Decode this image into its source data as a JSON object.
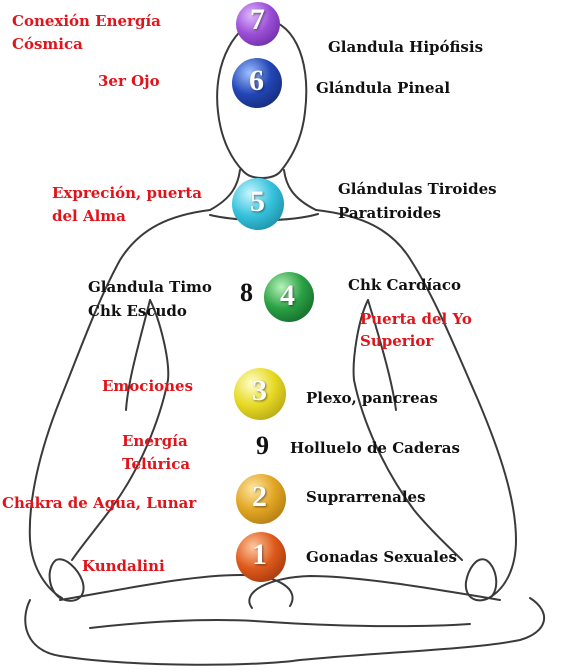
{
  "chakras": [
    {
      "number": "7",
      "color": "#8b3cc4",
      "label": "Glandula Hipófisis",
      "side_label": "Conexión Energía Cósmica"
    },
    {
      "number": "6",
      "color": "#1c3d9c",
      "label": "Glándula Pineal",
      "side_label": "3er Ojo"
    },
    {
      "number": "5",
      "color": "#2bb4cf",
      "label": "Glándulas Tiroides Paratiroides",
      "side_label": "Expreción, puerta del Alma"
    },
    {
      "number": "4",
      "color": "#1f8a3a",
      "label": "Chk Cardíaco",
      "side_label": "Puerta del Yo Superior"
    },
    {
      "number": "3",
      "color": "#e3d21a",
      "label": "Plexo, pancreas",
      "side_label": "Emociones"
    },
    {
      "number": "2",
      "color": "#e0a21f",
      "label": "Suprarrenales",
      "side_label": "Chakra de Agua, Lunar"
    },
    {
      "number": "1",
      "color": "#d8541a",
      "label": "Gonadas Sexuales",
      "side_label": "Kundalini"
    }
  ],
  "labels": {
    "conexion_line1": "Conexión Energía",
    "conexion_line2": "Cósmica",
    "hipofisis": "Glandula Hipófisis",
    "tercer_ojo": "3er Ojo",
    "pineal": "Glándula Pineal",
    "expresion_line1": "Expreción, puerta",
    "expresion_line2": "del Alma",
    "tiroides_line1": "Glándulas Tiroides",
    "tiroides_line2": "Paratiroides",
    "timo_line1": "Glandula Timo",
    "timo_line2": "Chk Escudo",
    "cardiaco": "Chk Cardíaco",
    "yo_superior_line1": "Puerta del Yo",
    "yo_superior_line2": "Superior",
    "emociones": "Emociones",
    "plexo": "Plexo, pancreas",
    "telurica_line1": "Energía",
    "telurica_line2": "Telúrica",
    "caderas": "Holluelo de Caderas",
    "agua": "Chakra de Agua, Lunar",
    "suprarrenales": "Suprarrenales",
    "kundalini": "Kundalini",
    "gonadas": "Gonadas Sexuales",
    "num8": "8",
    "num9": "9"
  },
  "colors": {
    "label_red": "#e0141b",
    "label_black": "#111111",
    "outline": "#3a3a3a"
  }
}
